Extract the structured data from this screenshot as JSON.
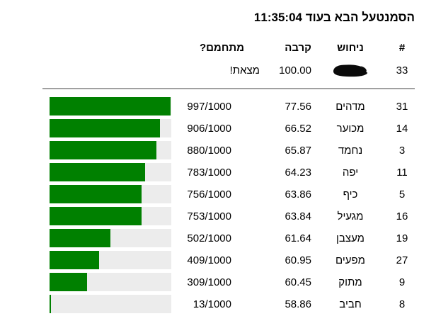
{
  "title": "הסמנטעל הבא בעוד 11:35:04",
  "colors": {
    "bar_green": "#008000",
    "bar_track": "#ececec",
    "divider": "#a0a0a0",
    "text": "#000000",
    "background": "#ffffff"
  },
  "table": {
    "headers": {
      "rank": "#",
      "guess": "ניחוש",
      "similarity": "קרבה",
      "warming": "מתחמם?"
    },
    "found_row": {
      "rank": "33",
      "guess_redacted": true,
      "similarity": "100.00",
      "warming": "מצאת!"
    },
    "rows": [
      {
        "rank": "31",
        "guess": "מדהים",
        "similarity": "77.56",
        "warming": "997/1000",
        "fraction": 0.997
      },
      {
        "rank": "14",
        "guess": "מכוער",
        "similarity": "66.52",
        "warming": "906/1000",
        "fraction": 0.906
      },
      {
        "rank": "3",
        "guess": "נחמד",
        "similarity": "65.87",
        "warming": "880/1000",
        "fraction": 0.88
      },
      {
        "rank": "11",
        "guess": "יפה",
        "similarity": "64.23",
        "warming": "783/1000",
        "fraction": 0.783
      },
      {
        "rank": "5",
        "guess": "כיף",
        "similarity": "63.86",
        "warming": "756/1000",
        "fraction": 0.756
      },
      {
        "rank": "16",
        "guess": "מגעיל",
        "similarity": "63.84",
        "warming": "753/1000",
        "fraction": 0.753
      },
      {
        "rank": "19",
        "guess": "מעצבן",
        "similarity": "61.64",
        "warming": "502/1000",
        "fraction": 0.502
      },
      {
        "rank": "27",
        "guess": "מפעים",
        "similarity": "60.95",
        "warming": "409/1000",
        "fraction": 0.409
      },
      {
        "rank": "9",
        "guess": "מתוק",
        "similarity": "60.45",
        "warming": "309/1000",
        "fraction": 0.309
      },
      {
        "rank": "8",
        "guess": "חביב",
        "similarity": "58.86",
        "warming": "13/1000",
        "fraction": 0.013
      }
    ]
  }
}
